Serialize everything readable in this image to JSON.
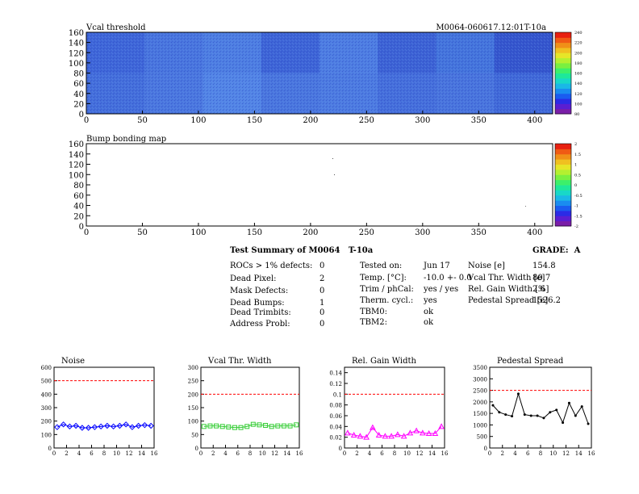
{
  "colors": {
    "map_base": "#3f63d6",
    "limit_line": "#ff0000",
    "noise_series": "#0000ff",
    "vcal_series": "#33cc33",
    "gain_series": "#ff00ff",
    "pedestal_series": "#000000"
  },
  "top_map": {
    "title": "Vcal threshold",
    "right_title": "M0064-060617.12:01T-10a",
    "x_ticks": [
      "0",
      "50",
      "100",
      "150",
      "200",
      "250",
      "300",
      "350",
      "400"
    ],
    "y_ticks": [
      "0",
      "20",
      "40",
      "60",
      "80",
      "100",
      "120",
      "140",
      "160"
    ],
    "palette_labels": [
      "80",
      "100",
      "120",
      "140",
      "160",
      "180",
      "200",
      "220",
      "240"
    ]
  },
  "bump_map": {
    "title": "Bump bonding map",
    "x_ticks": [
      "0",
      "50",
      "100",
      "150",
      "200",
      "250",
      "300",
      "350",
      "400"
    ],
    "y_ticks": [
      "0",
      "20",
      "40",
      "60",
      "80",
      "100",
      "120",
      "140",
      "160"
    ],
    "palette_labels": [
      "-2",
      "-1.5",
      "-1",
      "-0.5",
      "0",
      "0.5",
      "1",
      "1.5",
      "2"
    ]
  },
  "summary": {
    "title": "Test Summary of M0064",
    "title_suffix": "T-10a",
    "grade_label": "GRADE:",
    "grade_value": "A",
    "defects": [
      {
        "label": "ROCs > 1% defects:",
        "value": "0"
      },
      {
        "label": "Dead Pixel:",
        "value": "2"
      },
      {
        "label": "Mask Defects:",
        "value": "0"
      },
      {
        "label": "Dead Bumps:",
        "value": "1"
      },
      {
        "label": "Dead Trimbits:",
        "value": "0"
      },
      {
        "label": "Address Probl:",
        "value": "0"
      }
    ],
    "conditions": [
      {
        "label": "Tested on:",
        "value": "Jun 17"
      },
      {
        "label": "Temp. [°C]:",
        "value": "-10.0 +- 0.0"
      },
      {
        "label": "Trim / phCal:",
        "value": "yes / yes"
      },
      {
        "label": "Therm. cycl.:",
        "value": "yes"
      },
      {
        "label": "TBM0:",
        "value": "ok"
      },
      {
        "label": "TBM2:",
        "value": "ok"
      }
    ],
    "results": [
      {
        "label": "Noise [e]",
        "value": "154.8"
      },
      {
        "label": "Vcal Thr. Width [e]",
        "value": "80.7"
      },
      {
        "label": "Rel. Gain Width [%]",
        "value": "2.6"
      },
      {
        "label": "Pedestal Spread [e]",
        "value": "1526.2"
      }
    ]
  },
  "chart_data": [
    {
      "type": "line",
      "title": "Noise",
      "x_ticks": [
        "0",
        "2",
        "4",
        "6",
        "8",
        "10",
        "12",
        "14",
        "16"
      ],
      "xlim": [
        0,
        16
      ],
      "ylim": [
        0,
        600
      ],
      "y_ticks": [
        "0",
        "100",
        "200",
        "300",
        "400",
        "500",
        "600"
      ],
      "y_tick_values": [
        0,
        100,
        200,
        300,
        400,
        500,
        600
      ],
      "limit": 500,
      "series": [
        {
          "x": [
            0.5,
            1.5,
            2.5,
            3.5,
            4.5,
            5.5,
            6.5,
            7.5,
            8.5,
            9.5,
            10.5,
            11.5,
            12.5,
            13.5,
            14.5,
            15.5
          ],
          "values": [
            155,
            175,
            160,
            165,
            150,
            150,
            155,
            160,
            165,
            160,
            165,
            175,
            155,
            165,
            170,
            165
          ]
        }
      ]
    },
    {
      "type": "line",
      "title": "Vcal Thr. Width",
      "x_ticks": [
        "0",
        "2",
        "4",
        "6",
        "8",
        "10",
        "12",
        "14",
        "16"
      ],
      "xlim": [
        0,
        16
      ],
      "ylim": [
        0,
        300
      ],
      "y_ticks": [
        "0",
        "50",
        "100",
        "150",
        "200",
        "250",
        "300"
      ],
      "y_tick_values": [
        0,
        50,
        100,
        150,
        200,
        250,
        300
      ],
      "limit": 200,
      "series": [
        {
          "x": [
            0.5,
            1.5,
            2.5,
            3.5,
            4.5,
            5.5,
            6.5,
            7.5,
            8.5,
            9.5,
            10.5,
            11.5,
            12.5,
            13.5,
            14.5,
            15.5
          ],
          "values": [
            80,
            82,
            82,
            80,
            78,
            76,
            76,
            80,
            88,
            86,
            84,
            80,
            82,
            82,
            82,
            86
          ]
        }
      ]
    },
    {
      "type": "line",
      "title": "Rel. Gain Width",
      "x_ticks": [
        "0",
        "2",
        "4",
        "6",
        "8",
        "10",
        "12",
        "14",
        "16"
      ],
      "xlim": [
        0,
        16
      ],
      "ylim": [
        0,
        0.15
      ],
      "y_ticks": [
        "0",
        "0.02",
        "0.04",
        "0.06",
        "0.08",
        "0.1",
        "0.12",
        "0.14"
      ],
      "y_tick_values": [
        0,
        0.02,
        0.04,
        0.06,
        0.08,
        0.1,
        0.12,
        0.14
      ],
      "limit": 0.1,
      "series": [
        {
          "x": [
            0.5,
            1.5,
            2.5,
            3.5,
            4.5,
            5.5,
            6.5,
            7.5,
            8.5,
            9.5,
            10.5,
            11.5,
            12.5,
            13.5,
            14.5,
            15.5
          ],
          "values": [
            0.028,
            0.024,
            0.022,
            0.02,
            0.038,
            0.024,
            0.022,
            0.022,
            0.025,
            0.022,
            0.028,
            0.032,
            0.028,
            0.027,
            0.027,
            0.04
          ]
        }
      ]
    },
    {
      "type": "line",
      "title": "Pedestal Spread",
      "x_ticks": [
        "0",
        "2",
        "4",
        "6",
        "8",
        "10",
        "12",
        "14",
        "16"
      ],
      "xlim": [
        0,
        16
      ],
      "ylim": [
        0,
        3500
      ],
      "y_ticks": [
        "0",
        "500",
        "1000",
        "1500",
        "2000",
        "2500",
        "3000",
        "3500"
      ],
      "y_tick_values": [
        0,
        500,
        1000,
        1500,
        2000,
        2500,
        3000,
        3500
      ],
      "limit": 2500,
      "series": [
        {
          "x": [
            0.5,
            1.5,
            2.5,
            3.5,
            4.5,
            5.5,
            6.5,
            7.5,
            8.5,
            9.5,
            10.5,
            11.5,
            12.5,
            13.5,
            14.5,
            15.5
          ],
          "values": [
            1850,
            1550,
            1450,
            1380,
            2350,
            1450,
            1400,
            1400,
            1300,
            1550,
            1650,
            1100,
            1950,
            1400,
            1800,
            1050
          ]
        }
      ]
    }
  ]
}
